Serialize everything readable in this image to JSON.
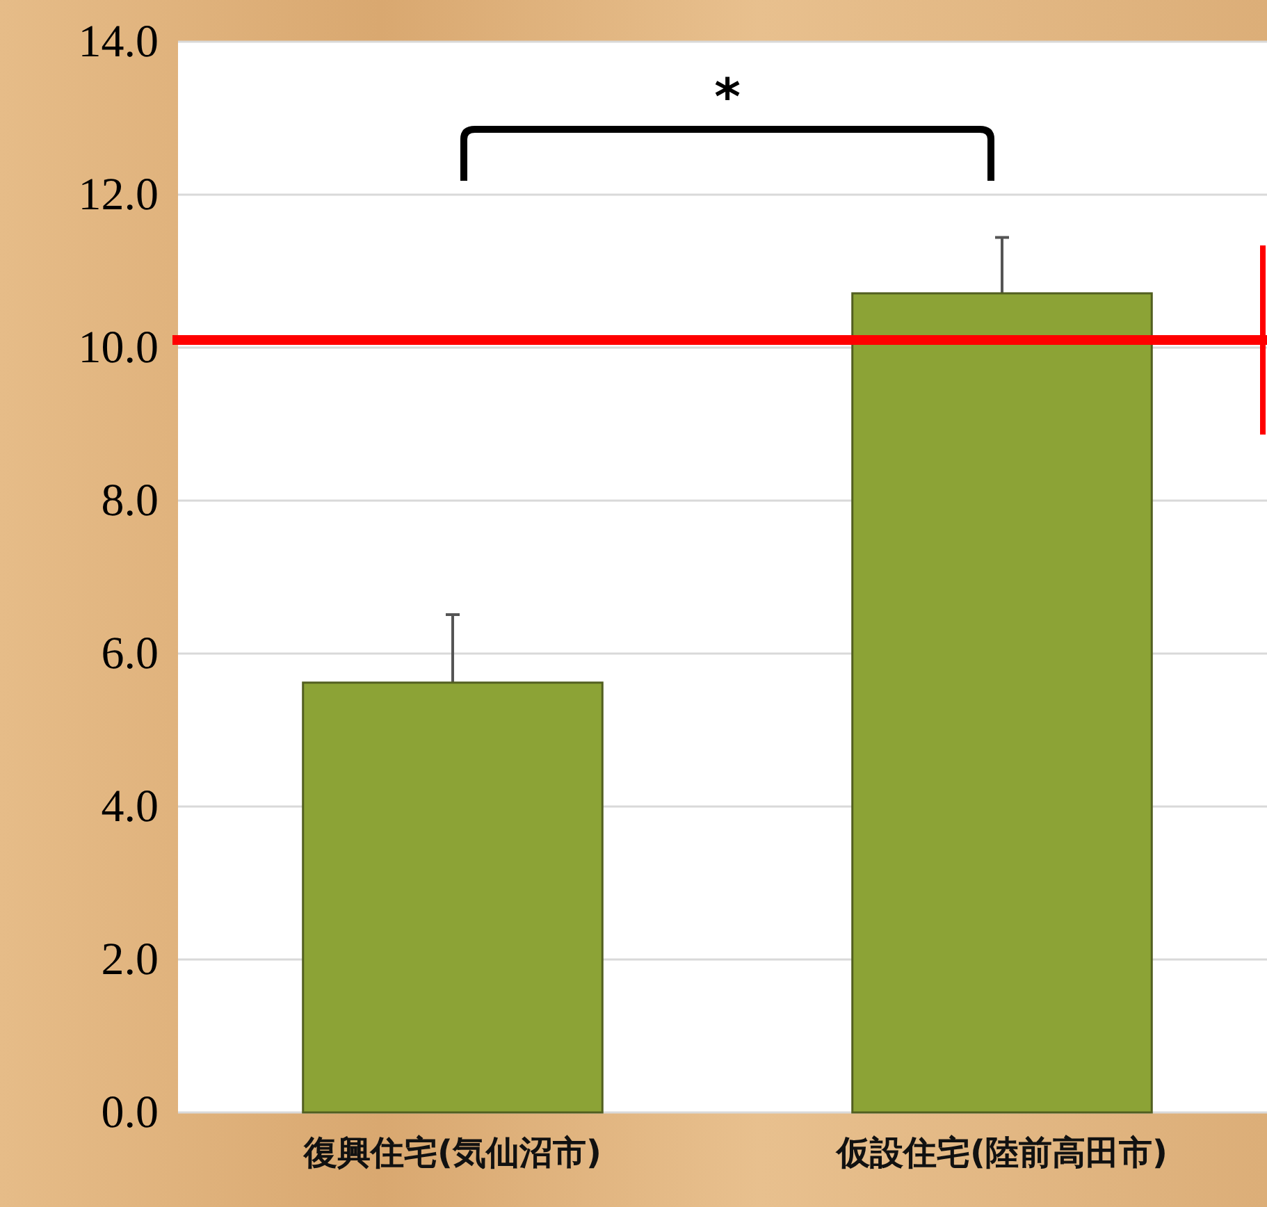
{
  "chart_data": {
    "type": "bar",
    "categories": [
      "復興住宅(気仙沼市)",
      "仮設住宅(陸前高田市)"
    ],
    "values": [
      5.62,
      10.71
    ],
    "errors": [
      [
        5.62,
        6.51
      ],
      [
        10.71,
        11.44
      ]
    ],
    "color": "#8ca336",
    "ylim": [
      0,
      14
    ],
    "yticks": [
      {
        "value": 0,
        "label": "0.0"
      },
      {
        "value": 2,
        "label": "2.0"
      },
      {
        "value": 4,
        "label": "4.0"
      },
      {
        "value": 6,
        "label": "6.0"
      },
      {
        "value": 8,
        "label": "8.0"
      },
      {
        "value": 10,
        "label": "10.0"
      },
      {
        "value": 12,
        "label": "12.0"
      },
      {
        "value": 14,
        "label": "14.0"
      }
    ],
    "grid": "y",
    "ref_lines": [
      {
        "axis": "y",
        "value": 10.1,
        "color": "#ff0000"
      }
    ],
    "annotations": [
      "*"
    ]
  }
}
